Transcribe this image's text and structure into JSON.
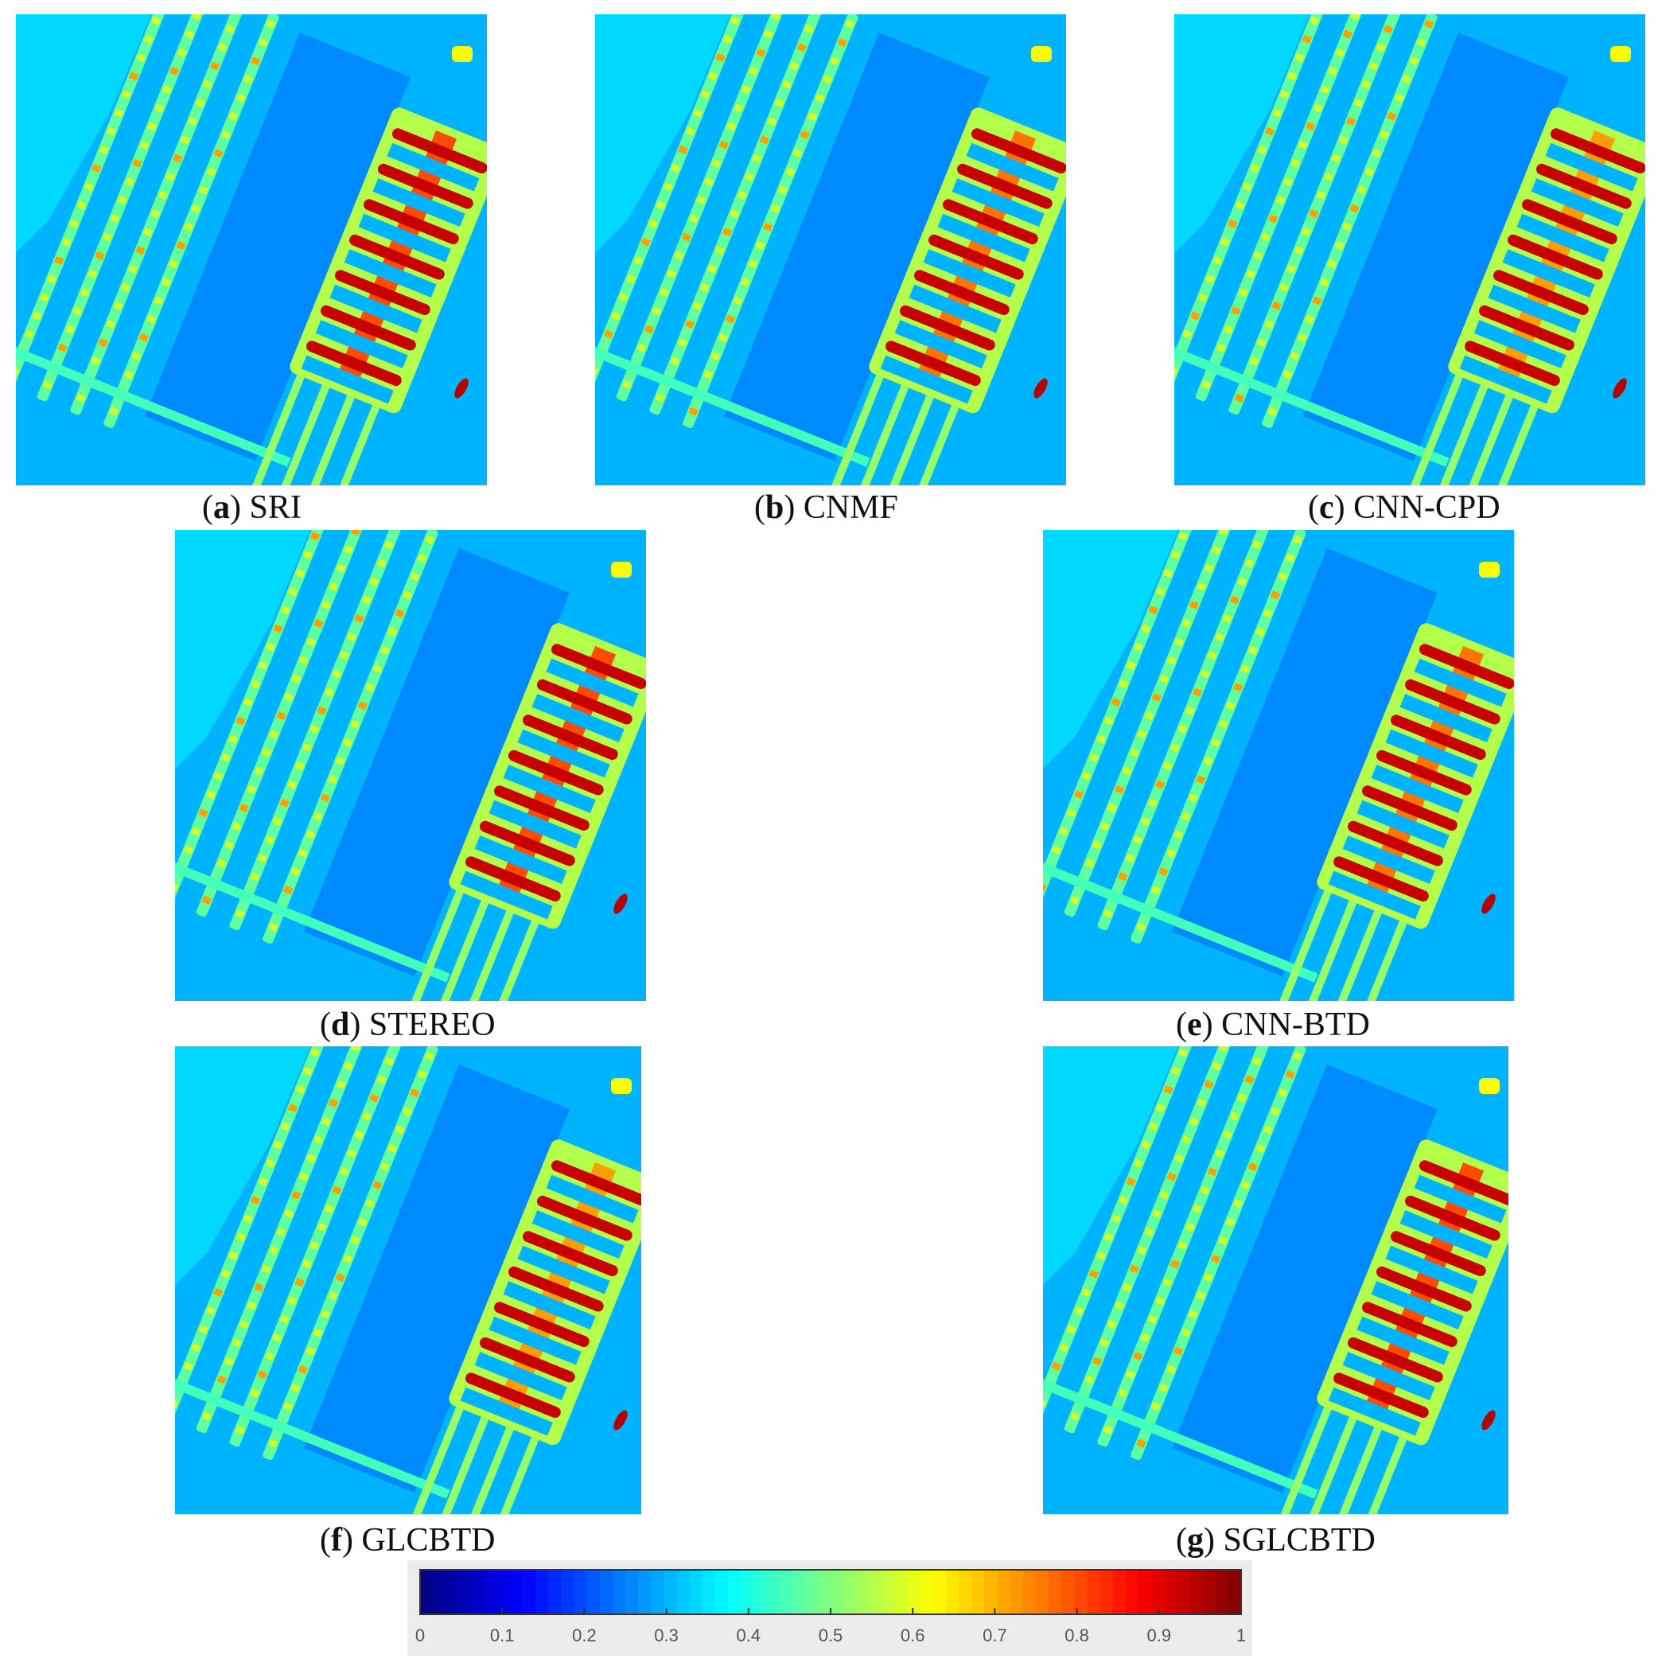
{
  "panels": [
    {
      "id": "a",
      "letter": "a",
      "name": "SRI"
    },
    {
      "id": "b",
      "letter": "b",
      "name": "CNMF"
    },
    {
      "id": "c",
      "letter": "c",
      "name": "CNN-CPD"
    },
    {
      "id": "d",
      "letter": "d",
      "name": "STEREO"
    },
    {
      "id": "e",
      "letter": "e",
      "name": "CNN-BTD"
    },
    {
      "id": "f",
      "letter": "f",
      "name": "GLCBTD"
    },
    {
      "id": "g",
      "letter": "g",
      "name": "SGLCBTD"
    }
  ],
  "colorbar": {
    "min": 0,
    "max": 1,
    "ticks": [
      "0",
      "0.1",
      "0.2",
      "0.3",
      "0.4",
      "0.5",
      "0.6",
      "0.7",
      "0.8",
      "0.9",
      "1"
    ],
    "colormap": "jet"
  },
  "colors": {
    "background_low": "#0c2fd8",
    "mid": "#2fd9f5",
    "high": "#f5e81c",
    "peak": "#e0200e"
  }
}
